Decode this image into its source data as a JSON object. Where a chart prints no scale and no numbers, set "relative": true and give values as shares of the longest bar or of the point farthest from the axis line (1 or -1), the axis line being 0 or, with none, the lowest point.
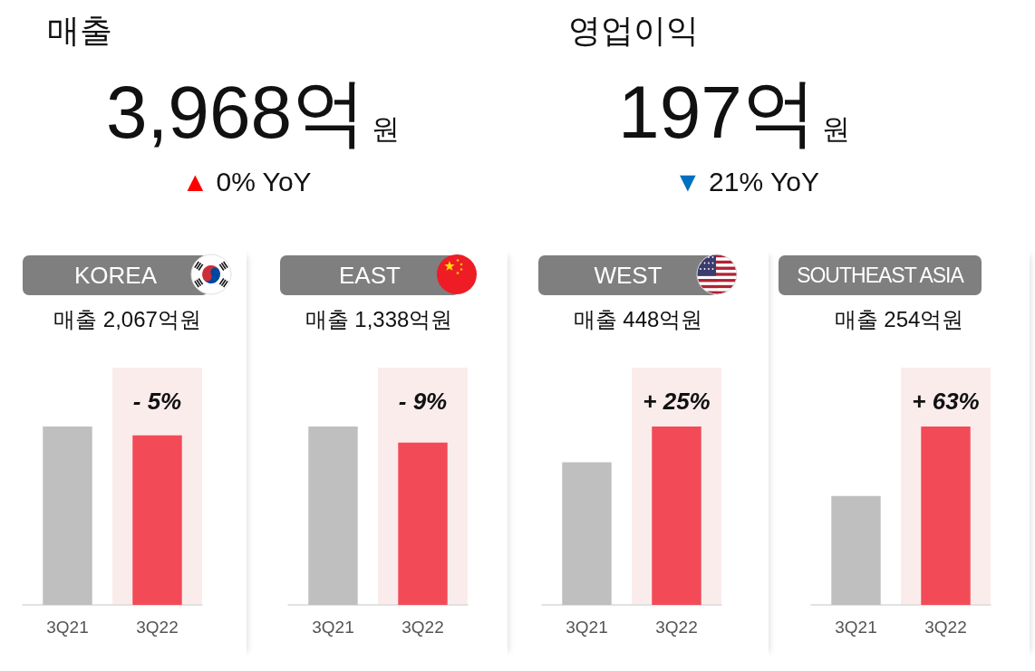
{
  "chart_data": [
    {
      "type": "other",
      "title": "매출",
      "annotations": [
        "3,968억$_{원}$",
        "▲ 0% YoY"
      ],
      "color": "#ff0000"
    },
    {
      "type": "other",
      "title": "영업이익",
      "annotations": [
        "197억$_{원}$",
        "▼ 21% YoY"
      ],
      "color": "#0070c0"
    },
    {
      "type": "bar",
      "title": "KOREA",
      "subtitle": "매출 2,067억원",
      "categories": [
        "3Q21",
        "3Q22"
      ],
      "values": [
        1,
        0.95
      ],
      "colors": [
        "#bfbfbf",
        "#f24b57"
      ],
      "relative": true,
      "bands": [
        {
          "axis": "x",
          "from": "3Q22",
          "to": "3Q22",
          "color": "#fbecec"
        }
      ],
      "annotations": [
        "- 5%"
      ]
    },
    {
      "type": "bar",
      "title": "EAST",
      "subtitle": "매출 1,338억원",
      "categories": [
        "3Q21",
        "3Q22"
      ],
      "values": [
        1,
        0.91
      ],
      "colors": [
        "#bfbfbf",
        "#f24b57"
      ],
      "relative": true,
      "bands": [
        {
          "axis": "x",
          "from": "3Q22",
          "to": "3Q22",
          "color": "#fbecec"
        }
      ],
      "annotations": [
        "- 9%"
      ]
    },
    {
      "type": "bar",
      "title": "WEST",
      "subtitle": "매출 448억원",
      "categories": [
        "3Q21",
        "3Q22"
      ],
      "values": [
        0.8,
        1
      ],
      "colors": [
        "#bfbfbf",
        "#f24b57"
      ],
      "relative": true,
      "bands": [
        {
          "axis": "x",
          "from": "3Q22",
          "to": "3Q22",
          "color": "#fbecec"
        }
      ],
      "annotations": [
        "+ 25%"
      ]
    },
    {
      "type": "bar",
      "title": "SOUTHEAST ASIA",
      "subtitle": "매출 254억원",
      "categories": [
        "3Q21",
        "3Q22"
      ],
      "values": [
        0.61,
        1
      ],
      "colors": [
        "#bfbfbf",
        "#f24b57"
      ],
      "relative": true,
      "bands": [
        {
          "axis": "x",
          "from": "3Q22",
          "to": "3Q22",
          "color": "#fbecec"
        }
      ],
      "annotations": [
        "+ 63%"
      ]
    }
  ]
}
